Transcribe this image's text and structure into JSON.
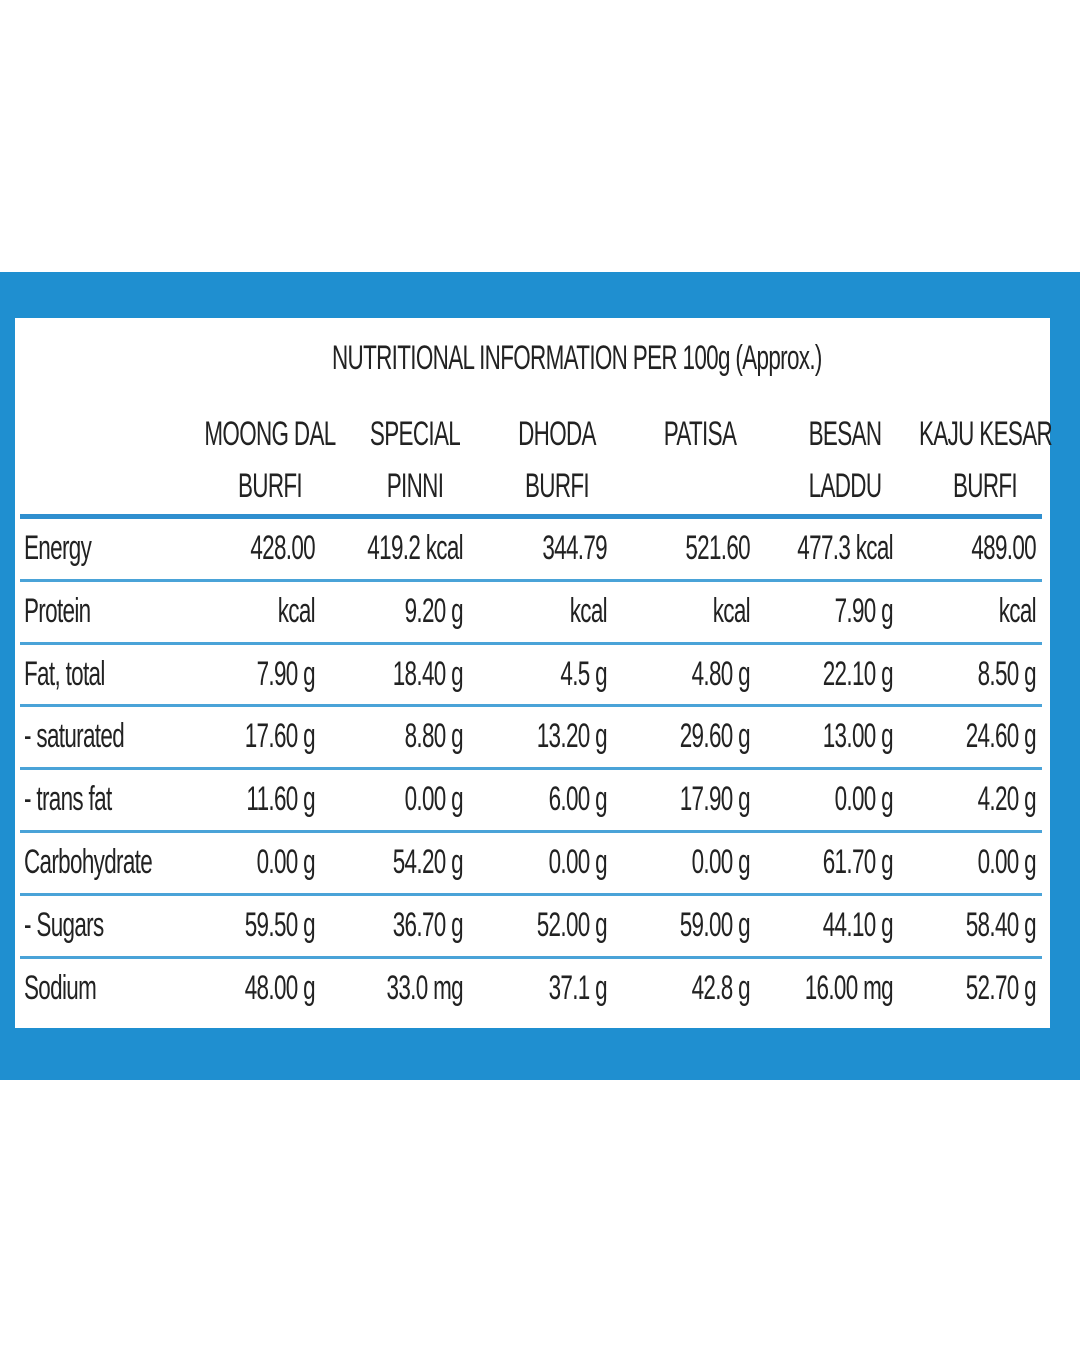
{
  "table": {
    "title": "NUTRITIONAL INFORMATION PER 100g (Approx.)",
    "columns": [
      [
        "MOONG DAL",
        "BURFI"
      ],
      [
        "SPECIAL",
        "PINNI"
      ],
      [
        "DHODA",
        "BURFI"
      ],
      [
        "PATISA"
      ],
      [
        "BESAN",
        "LADDU"
      ],
      [
        "KAJU KESAR",
        "BURFI"
      ]
    ],
    "rows": [
      [
        "Energy",
        "428.00",
        "419.2 kcal",
        "344.79",
        "521.60",
        "477.3 kcal",
        "489.00"
      ],
      [
        "Protein",
        "kcal",
        "9.20 g",
        "kcal",
        "kcal",
        "7.90 g",
        "kcal"
      ],
      [
        "Fat, total",
        "7.90 g",
        "18.40 g",
        "4.5 g",
        "4.80 g",
        "22.10 g",
        "8.50 g"
      ],
      [
        "- saturated",
        "17.60 g",
        "8.80 g",
        "13.20 g",
        "29.60 g",
        "13.00 g",
        "24.60 g"
      ],
      [
        "- trans fat",
        "11.60 g",
        "0.00 g",
        "6.00 g",
        "17.90 g",
        "0.00 g",
        "4.20 g"
      ],
      [
        "Carbohydrate",
        "0.00 g",
        "54.20 g",
        "0.00 g",
        "0.00 g",
        "61.70 g",
        "0.00 g"
      ],
      [
        "- Sugars",
        "59.50 g",
        "36.70 g",
        "52.00 g",
        "59.00 g",
        "44.10 g",
        "58.40 g"
      ],
      [
        "Sodium",
        "48.00 g",
        "33.0 mg",
        "37.1 g",
        "42.8 g",
        "16.00 mg",
        "52.70 g"
      ]
    ]
  }
}
